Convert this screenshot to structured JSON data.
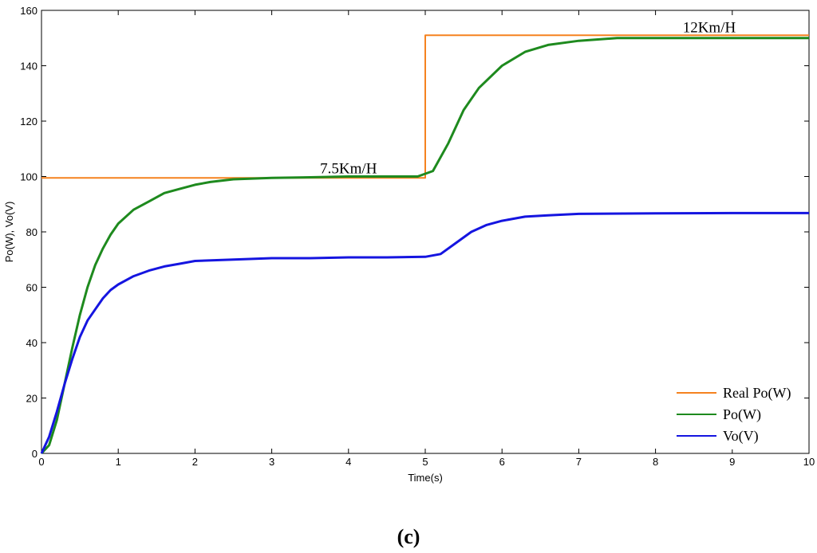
{
  "chart_data": {
    "type": "line",
    "xlabel": "Time(s)",
    "ylabel": "Po(W), Vo(V)",
    "xlim": [
      0,
      10
    ],
    "ylim": [
      0,
      160
    ],
    "x_ticks": [
      "0",
      "1",
      "2",
      "3",
      "4",
      "5",
      "6",
      "7",
      "8",
      "9",
      "10"
    ],
    "y_ticks": [
      "0",
      "20",
      "40",
      "60",
      "80",
      "100",
      "120",
      "140",
      "160"
    ],
    "grid": false,
    "legend_position": "bottom-right",
    "annotations": [
      {
        "text": "7.5Km/H",
        "x": 4.0,
        "y": 100
      },
      {
        "text": "12Km/H",
        "x": 8.7,
        "y": 151
      }
    ],
    "caption": "(c)",
    "series": [
      {
        "name": "Real Po(W)",
        "color": "#f5821f",
        "x": [
          0,
          5.0,
          5.0,
          10
        ],
        "y": [
          99.5,
          99.5,
          151,
          151
        ]
      },
      {
        "name": "Po(W)",
        "color": "#1e8a1e",
        "x": [
          0,
          0.1,
          0.2,
          0.3,
          0.4,
          0.5,
          0.6,
          0.7,
          0.8,
          0.9,
          1.0,
          1.2,
          1.4,
          1.6,
          1.8,
          2.0,
          2.2,
          2.5,
          3.0,
          3.5,
          4.0,
          4.5,
          4.9,
          5.1,
          5.3,
          5.5,
          5.7,
          6.0,
          6.3,
          6.6,
          7.0,
          7.5,
          8.0,
          9.0,
          10.0
        ],
        "y": [
          0,
          3,
          12,
          25,
          38,
          50,
          60,
          68,
          74,
          79,
          83,
          88,
          91,
          94,
          95.5,
          97,
          98,
          99,
          99.5,
          99.7,
          100,
          100,
          100,
          102,
          112,
          124,
          132,
          140,
          145,
          147.5,
          149,
          150,
          150,
          150,
          150
        ]
      },
      {
        "name": "Vo(V)",
        "color": "#1515e0",
        "x": [
          0,
          0.1,
          0.2,
          0.3,
          0.4,
          0.5,
          0.6,
          0.7,
          0.8,
          0.9,
          1.0,
          1.2,
          1.4,
          1.6,
          1.8,
          2.0,
          2.5,
          3.0,
          3.5,
          4.0,
          4.5,
          5.0,
          5.2,
          5.4,
          5.6,
          5.8,
          6.0,
          6.3,
          6.6,
          7.0,
          8.0,
          9.0,
          10.0
        ],
        "y": [
          0,
          6,
          15,
          25,
          34,
          42,
          48,
          52,
          56,
          59,
          61,
          64,
          66,
          67.5,
          68.5,
          69.5,
          70,
          70.5,
          70.5,
          70.8,
          70.8,
          71,
          72,
          76,
          80,
          82.5,
          84,
          85.5,
          86,
          86.5,
          86.7,
          86.8,
          86.8
        ]
      }
    ]
  }
}
